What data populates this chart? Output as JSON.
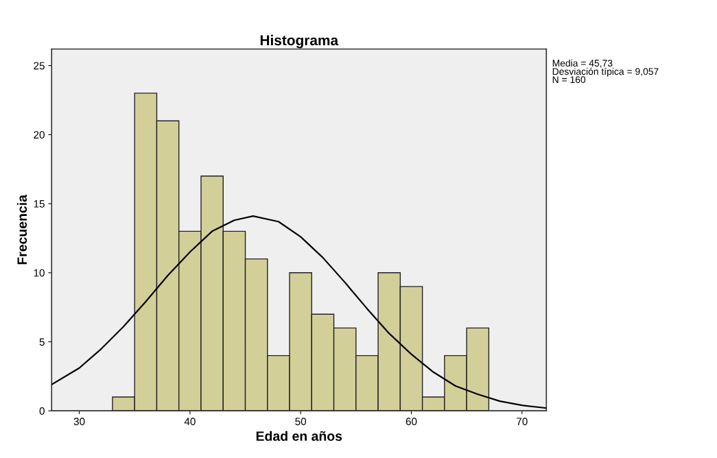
{
  "chart_data": {
    "type": "histogram",
    "title": "Histograma",
    "xlabel": "Edad en años",
    "ylabel": "Frecuencia",
    "bins": [
      33,
      35,
      37,
      39,
      41,
      43,
      45,
      47,
      49,
      51,
      53,
      55,
      57,
      59,
      61,
      63,
      65,
      67
    ],
    "values": [
      1,
      23,
      21,
      13,
      17,
      13,
      11,
      4,
      10,
      7,
      6,
      4,
      10,
      9,
      1,
      4,
      6
    ],
    "color": "#d3cf98",
    "series": [
      {
        "type": "line",
        "color": "#000000",
        "x": [
          27.5,
          30,
          32,
          34,
          36,
          38,
          40,
          42,
          44,
          45.7,
          48,
          50,
          52,
          54,
          56,
          58,
          60,
          62,
          64,
          66,
          68,
          70,
          72.2
        ],
        "values": [
          1.9,
          3.1,
          4.5,
          6.1,
          7.9,
          9.8,
          11.5,
          13.0,
          13.8,
          14.1,
          13.7,
          12.6,
          11.1,
          9.3,
          7.4,
          5.6,
          4.1,
          2.8,
          1.8,
          1.2,
          0.7,
          0.4,
          0.2
        ]
      }
    ],
    "xlim": [
      27.5,
      72.2
    ],
    "ylim": [
      0,
      26.2
    ],
    "xticks": [
      30,
      40,
      50,
      60,
      70
    ],
    "yticks": [
      0,
      5,
      10,
      15,
      20,
      25
    ],
    "grid": false,
    "marker": "none",
    "line_style": "solid",
    "annotations": [
      "Media = 45,73\nDesviación típica = 9,057\nN = 160"
    ]
  }
}
